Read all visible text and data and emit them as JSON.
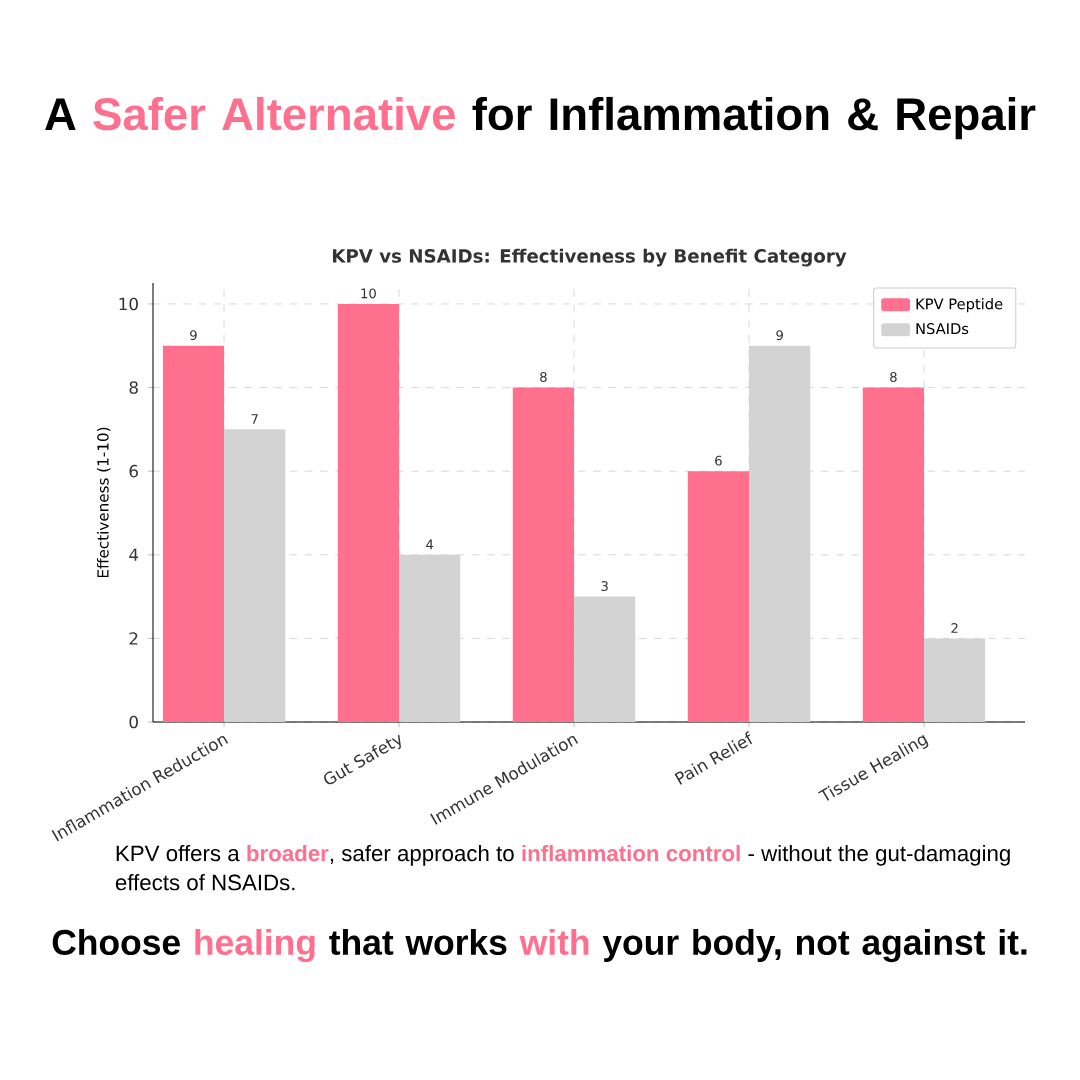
{
  "chart_data": {
    "type": "bar",
    "title": "KPV vs NSAIDs: Effectiveness by Benefit Category",
    "ylabel": "Effectiveness (1-10)",
    "categories": [
      "Inflammation Reduction",
      "Gut Safety",
      "Immune Modulation",
      "Pain Relief",
      "Tissue Healing"
    ],
    "series": [
      {
        "name": "KPV Peptide",
        "color": "#ff6f8e",
        "values": [
          9,
          10,
          8,
          6,
          8
        ]
      },
      {
        "name": "NSAIDs",
        "color": "#d3d3d3",
        "values": [
          7,
          4,
          3,
          9,
          2
        ]
      }
    ],
    "ylim": [
      0,
      10.5
    ],
    "yticks": [
      0,
      2,
      4,
      6,
      8,
      10
    ],
    "grid": true,
    "legend": "top right",
    "data_labels": true,
    "annotations": [
      "A ",
      "Safer Alternative",
      " for Inflammation & Repair",
      "KPV offers a ",
      "broader",
      ", safer  approach to ",
      "inflammation control",
      " - without the gut-damaging effects of NSAIDs.",
      "Choose ",
      "healing",
      " that works ",
      "with",
      " your body, not against it."
    ]
  }
}
